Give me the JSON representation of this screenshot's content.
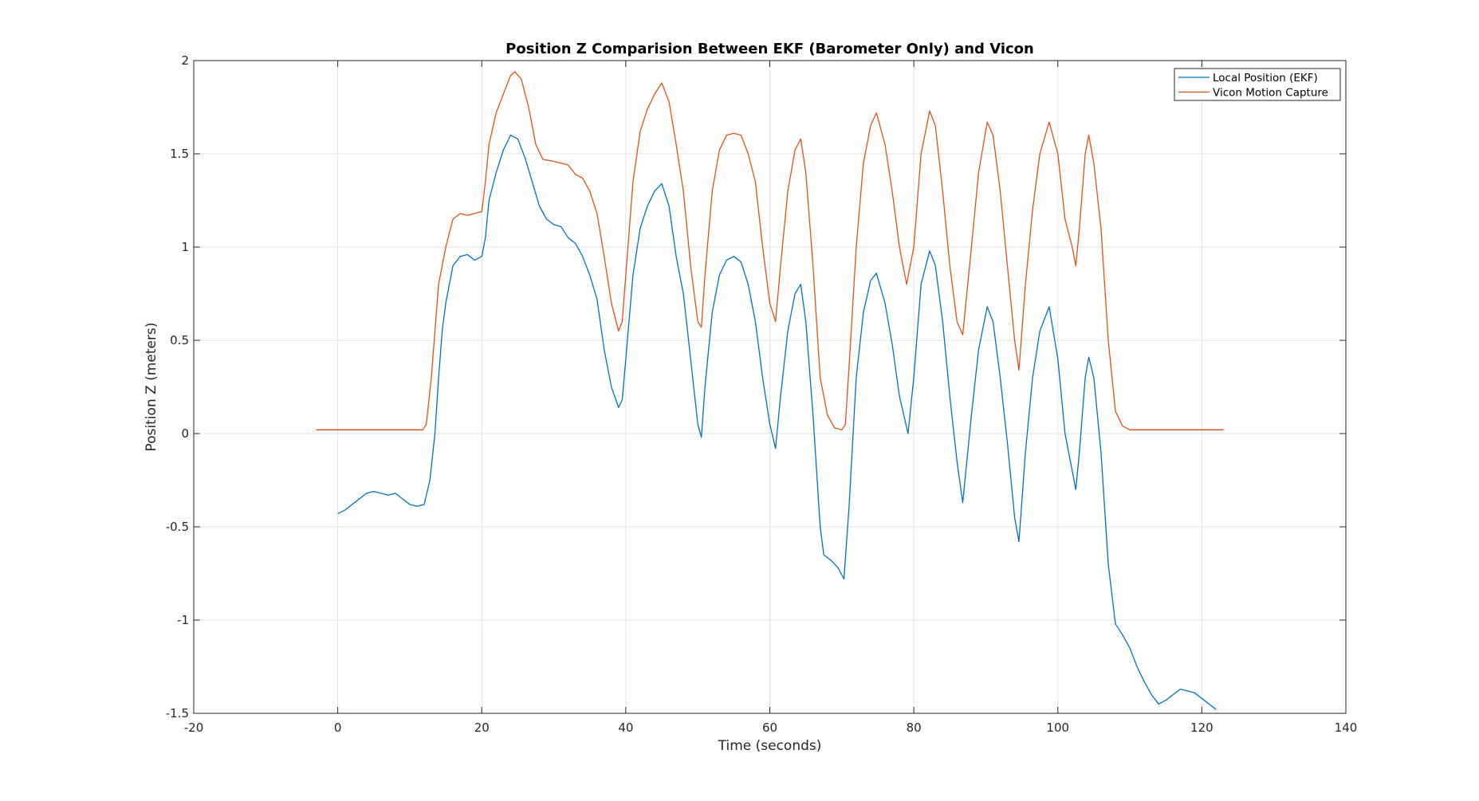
{
  "chart_data": {
    "type": "line",
    "title": "Position Z Comparision Between EKF (Barometer Only) and Vicon",
    "xlabel": "Time (seconds)",
    "ylabel": "Position Z (meters)",
    "xlim": [
      -20,
      140
    ],
    "ylim": [
      -1.5,
      2
    ],
    "xticks": [
      -20,
      0,
      20,
      40,
      60,
      80,
      100,
      120,
      140
    ],
    "yticks": [
      -1.5,
      -1,
      -0.5,
      0,
      0.5,
      1,
      1.5,
      2
    ],
    "grid": true,
    "legend_position": "top-right",
    "series": [
      {
        "name": "Local Position (EKF)",
        "color": "#0072BD",
        "points": [
          [
            0,
            -0.43
          ],
          [
            1,
            -0.41
          ],
          [
            2,
            -0.38
          ],
          [
            3,
            -0.35
          ],
          [
            4,
            -0.32
          ],
          [
            5,
            -0.31
          ],
          [
            6,
            -0.32
          ],
          [
            7,
            -0.33
          ],
          [
            8,
            -0.32
          ],
          [
            9,
            -0.35
          ],
          [
            10,
            -0.38
          ],
          [
            11,
            -0.39
          ],
          [
            12,
            -0.38
          ],
          [
            12.8,
            -0.25
          ],
          [
            13.5,
            0.0
          ],
          [
            14,
            0.3
          ],
          [
            14.5,
            0.55
          ],
          [
            15,
            0.7
          ],
          [
            15.5,
            0.8
          ],
          [
            16,
            0.9
          ],
          [
            17,
            0.95
          ],
          [
            18,
            0.96
          ],
          [
            19,
            0.93
          ],
          [
            20,
            0.95
          ],
          [
            20.5,
            1.05
          ],
          [
            21,
            1.25
          ],
          [
            22,
            1.4
          ],
          [
            23,
            1.52
          ],
          [
            24,
            1.6
          ],
          [
            25,
            1.58
          ],
          [
            26,
            1.48
          ],
          [
            27,
            1.35
          ],
          [
            28,
            1.22
          ],
          [
            29,
            1.15
          ],
          [
            30,
            1.12
          ],
          [
            31,
            1.11
          ],
          [
            32,
            1.05
          ],
          [
            33,
            1.02
          ],
          [
            34,
            0.95
          ],
          [
            35,
            0.85
          ],
          [
            36,
            0.72
          ],
          [
            37,
            0.45
          ],
          [
            38,
            0.25
          ],
          [
            39,
            0.14
          ],
          [
            39.5,
            0.18
          ],
          [
            40,
            0.4
          ],
          [
            41,
            0.85
          ],
          [
            42,
            1.1
          ],
          [
            43,
            1.22
          ],
          [
            44,
            1.3
          ],
          [
            45,
            1.34
          ],
          [
            46,
            1.22
          ],
          [
            47,
            0.95
          ],
          [
            48,
            0.75
          ],
          [
            49,
            0.4
          ],
          [
            50,
            0.05
          ],
          [
            50.5,
            -0.02
          ],
          [
            51,
            0.25
          ],
          [
            52,
            0.65
          ],
          [
            53,
            0.85
          ],
          [
            54,
            0.93
          ],
          [
            55,
            0.95
          ],
          [
            56,
            0.92
          ],
          [
            57,
            0.8
          ],
          [
            58,
            0.6
          ],
          [
            59,
            0.3
          ],
          [
            60,
            0.05
          ],
          [
            60.8,
            -0.08
          ],
          [
            61.5,
            0.2
          ],
          [
            62.5,
            0.55
          ],
          [
            63.5,
            0.75
          ],
          [
            64.3,
            0.8
          ],
          [
            65,
            0.6
          ],
          [
            66,
            0.1
          ],
          [
            67,
            -0.5
          ],
          [
            67.5,
            -0.65
          ],
          [
            68.5,
            -0.68
          ],
          [
            69.5,
            -0.72
          ],
          [
            70.3,
            -0.78
          ],
          [
            71,
            -0.4
          ],
          [
            72,
            0.3
          ],
          [
            73,
            0.65
          ],
          [
            74,
            0.82
          ],
          [
            74.8,
            0.86
          ],
          [
            76,
            0.7
          ],
          [
            77,
            0.48
          ],
          [
            78,
            0.2
          ],
          [
            79.2,
            0.0
          ],
          [
            80,
            0.3
          ],
          [
            81,
            0.8
          ],
          [
            82.2,
            0.98
          ],
          [
            83,
            0.9
          ],
          [
            84,
            0.6
          ],
          [
            85,
            0.2
          ],
          [
            86,
            -0.15
          ],
          [
            86.8,
            -0.37
          ],
          [
            88,
            0.1
          ],
          [
            89,
            0.45
          ],
          [
            90.2,
            0.68
          ],
          [
            91,
            0.6
          ],
          [
            92,
            0.3
          ],
          [
            93,
            -0.05
          ],
          [
            94,
            -0.45
          ],
          [
            94.6,
            -0.58
          ],
          [
            95.5,
            -0.1
          ],
          [
            96.5,
            0.3
          ],
          [
            97.5,
            0.55
          ],
          [
            98.8,
            0.68
          ],
          [
            100,
            0.4
          ],
          [
            101,
            0.0
          ],
          [
            102,
            -0.2
          ],
          [
            102.5,
            -0.3
          ],
          [
            103,
            -0.1
          ],
          [
            103.8,
            0.3
          ],
          [
            104.3,
            0.41
          ],
          [
            105,
            0.3
          ],
          [
            106,
            -0.1
          ],
          [
            107,
            -0.7
          ],
          [
            108,
            -1.02
          ],
          [
            109,
            -1.08
          ],
          [
            110,
            -1.15
          ],
          [
            111,
            -1.25
          ],
          [
            112,
            -1.33
          ],
          [
            113,
            -1.4
          ],
          [
            114,
            -1.45
          ],
          [
            115,
            -1.43
          ],
          [
            116,
            -1.4
          ],
          [
            117,
            -1.37
          ],
          [
            118,
            -1.38
          ],
          [
            119,
            -1.39
          ],
          [
            120,
            -1.42
          ],
          [
            121,
            -1.45
          ],
          [
            122,
            -1.48
          ]
        ]
      },
      {
        "name": "Vicon Motion Capture",
        "color": "#D95319",
        "points": [
          [
            -3,
            0.02
          ],
          [
            0,
            0.02
          ],
          [
            5,
            0.02
          ],
          [
            10,
            0.02
          ],
          [
            11.8,
            0.02
          ],
          [
            12.3,
            0.05
          ],
          [
            13,
            0.3
          ],
          [
            13.5,
            0.55
          ],
          [
            14,
            0.8
          ],
          [
            15,
            1.0
          ],
          [
            16,
            1.15
          ],
          [
            17,
            1.18
          ],
          [
            18,
            1.17
          ],
          [
            19,
            1.18
          ],
          [
            20,
            1.19
          ],
          [
            20.5,
            1.35
          ],
          [
            21,
            1.55
          ],
          [
            22,
            1.72
          ],
          [
            23,
            1.82
          ],
          [
            24,
            1.92
          ],
          [
            24.6,
            1.94
          ],
          [
            25.5,
            1.9
          ],
          [
            26.5,
            1.75
          ],
          [
            27.5,
            1.55
          ],
          [
            28.5,
            1.47
          ],
          [
            30,
            1.46
          ],
          [
            31,
            1.45
          ],
          [
            32,
            1.44
          ],
          [
            33,
            1.39
          ],
          [
            34,
            1.37
          ],
          [
            35,
            1.3
          ],
          [
            36,
            1.18
          ],
          [
            37,
            0.95
          ],
          [
            38,
            0.7
          ],
          [
            39,
            0.55
          ],
          [
            39.5,
            0.6
          ],
          [
            40,
            0.85
          ],
          [
            41,
            1.35
          ],
          [
            42,
            1.62
          ],
          [
            43,
            1.74
          ],
          [
            44,
            1.82
          ],
          [
            45,
            1.88
          ],
          [
            46,
            1.78
          ],
          [
            47,
            1.55
          ],
          [
            48,
            1.3
          ],
          [
            49,
            0.9
          ],
          [
            50,
            0.6
          ],
          [
            50.5,
            0.57
          ],
          [
            51,
            0.85
          ],
          [
            52,
            1.3
          ],
          [
            53,
            1.52
          ],
          [
            54,
            1.6
          ],
          [
            55,
            1.61
          ],
          [
            56,
            1.6
          ],
          [
            57,
            1.5
          ],
          [
            58,
            1.35
          ],
          [
            59,
            1.0
          ],
          [
            60,
            0.7
          ],
          [
            60.8,
            0.6
          ],
          [
            61.5,
            0.9
          ],
          [
            62.5,
            1.3
          ],
          [
            63.5,
            1.52
          ],
          [
            64.3,
            1.58
          ],
          [
            65,
            1.4
          ],
          [
            66,
            0.9
          ],
          [
            67,
            0.3
          ],
          [
            68,
            0.1
          ],
          [
            69,
            0.03
          ],
          [
            70,
            0.02
          ],
          [
            70.5,
            0.05
          ],
          [
            71,
            0.35
          ],
          [
            72,
            1.0
          ],
          [
            73,
            1.45
          ],
          [
            74,
            1.65
          ],
          [
            74.8,
            1.72
          ],
          [
            76,
            1.55
          ],
          [
            77,
            1.3
          ],
          [
            78,
            1.0
          ],
          [
            79,
            0.8
          ],
          [
            80,
            1.0
          ],
          [
            81,
            1.5
          ],
          [
            82.2,
            1.73
          ],
          [
            83,
            1.65
          ],
          [
            84,
            1.3
          ],
          [
            85,
            0.9
          ],
          [
            86,
            0.6
          ],
          [
            86.8,
            0.53
          ],
          [
            88,
            1.0
          ],
          [
            89,
            1.4
          ],
          [
            90.2,
            1.67
          ],
          [
            91,
            1.6
          ],
          [
            92,
            1.3
          ],
          [
            93,
            0.9
          ],
          [
            94,
            0.5
          ],
          [
            94.6,
            0.34
          ],
          [
            95.5,
            0.8
          ],
          [
            96.5,
            1.2
          ],
          [
            97.5,
            1.5
          ],
          [
            98.8,
            1.67
          ],
          [
            100,
            1.5
          ],
          [
            101,
            1.15
          ],
          [
            102,
            1.0
          ],
          [
            102.5,
            0.9
          ],
          [
            103,
            1.1
          ],
          [
            103.8,
            1.5
          ],
          [
            104.3,
            1.6
          ],
          [
            105,
            1.45
          ],
          [
            106,
            1.1
          ],
          [
            107,
            0.5
          ],
          [
            108,
            0.12
          ],
          [
            109,
            0.04
          ],
          [
            110,
            0.02
          ],
          [
            112,
            0.02
          ],
          [
            115,
            0.02
          ],
          [
            120,
            0.02
          ],
          [
            123,
            0.02
          ]
        ]
      }
    ]
  }
}
